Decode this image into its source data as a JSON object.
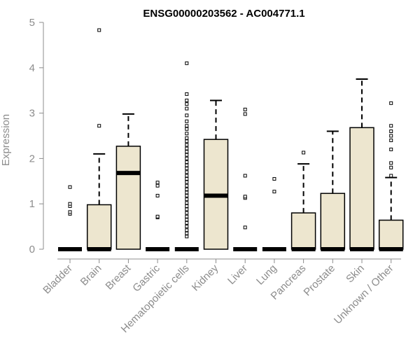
{
  "chart_data": {
    "type": "box",
    "title": "ENSG00000203562 - AC004771.1",
    "ylabel": "Expression",
    "xlabel": "",
    "ylim": [
      0,
      5
    ],
    "yticks": [
      0,
      1,
      2,
      3,
      4,
      5
    ],
    "box_fill": "#ede6cf",
    "axis_color": "#8c8c8c",
    "categories": [
      "Bladder",
      "Brain",
      "Breast",
      "Gastric",
      "Hematopoietic cells",
      "Kidney",
      "Liver",
      "Lung",
      "Pancreas",
      "Prostate",
      "Skin",
      "Unknown / Other"
    ],
    "boxes": [
      {
        "q1": 0,
        "median": 0,
        "q3": 0,
        "whisker_low": 0,
        "whisker_high": 0,
        "outliers": [
          0.78,
          0.82,
          0.95,
          1.0,
          1.37
        ]
      },
      {
        "q1": 0,
        "median": 0,
        "q3": 0.98,
        "whisker_low": 0,
        "whisker_high": 2.1,
        "outliers": [
          2.72,
          4.83
        ]
      },
      {
        "q1": 0,
        "median": 1.68,
        "q3": 2.27,
        "whisker_low": 0,
        "whisker_high": 2.98,
        "outliers": []
      },
      {
        "q1": 0,
        "median": 0,
        "q3": 0,
        "whisker_low": 0,
        "whisker_high": 0,
        "outliers": [
          0.7,
          0.72,
          1.18,
          1.4,
          1.47
        ]
      },
      {
        "q1": 0,
        "median": 0,
        "q3": 0,
        "whisker_low": 0,
        "whisker_high": 0,
        "outliers": [
          0.28,
          0.35,
          0.42,
          0.5,
          0.58,
          0.65,
          0.72,
          0.8,
          0.88,
          0.95,
          1.02,
          1.1,
          1.18,
          1.25,
          1.32,
          1.4,
          1.48,
          1.55,
          1.62,
          1.7,
          1.78,
          1.85,
          1.92,
          2.0,
          2.08,
          2.15,
          2.22,
          2.3,
          2.38,
          2.45,
          2.55,
          2.65,
          2.72,
          2.82,
          2.95,
          3.1,
          3.2,
          3.28,
          3.42,
          4.1
        ]
      },
      {
        "q1": 0,
        "median": 1.18,
        "q3": 2.42,
        "whisker_low": 0,
        "whisker_high": 3.28,
        "outliers": []
      },
      {
        "q1": 0,
        "median": 0,
        "q3": 0,
        "whisker_low": 0,
        "whisker_high": 0,
        "outliers": [
          0.48,
          1.13,
          1.16,
          1.62,
          2.98,
          3.08
        ]
      },
      {
        "q1": 0,
        "median": 0,
        "q3": 0,
        "whisker_low": 0,
        "whisker_high": 0,
        "outliers": [
          1.27,
          1.55
        ]
      },
      {
        "q1": 0,
        "median": 0,
        "q3": 0.8,
        "whisker_low": 0,
        "whisker_high": 1.88,
        "outliers": [
          2.13
        ]
      },
      {
        "q1": 0,
        "median": 0,
        "q3": 1.23,
        "whisker_low": 0,
        "whisker_high": 2.6,
        "outliers": []
      },
      {
        "q1": 0,
        "median": 0,
        "q3": 2.68,
        "whisker_low": 0,
        "whisker_high": 3.75,
        "outliers": []
      },
      {
        "q1": 0,
        "median": 0,
        "q3": 0.64,
        "whisker_low": 0,
        "whisker_high": 1.58,
        "outliers": [
          1.62,
          1.8,
          1.9,
          2.2,
          2.4,
          2.5,
          2.6,
          2.72,
          3.22
        ]
      }
    ]
  }
}
